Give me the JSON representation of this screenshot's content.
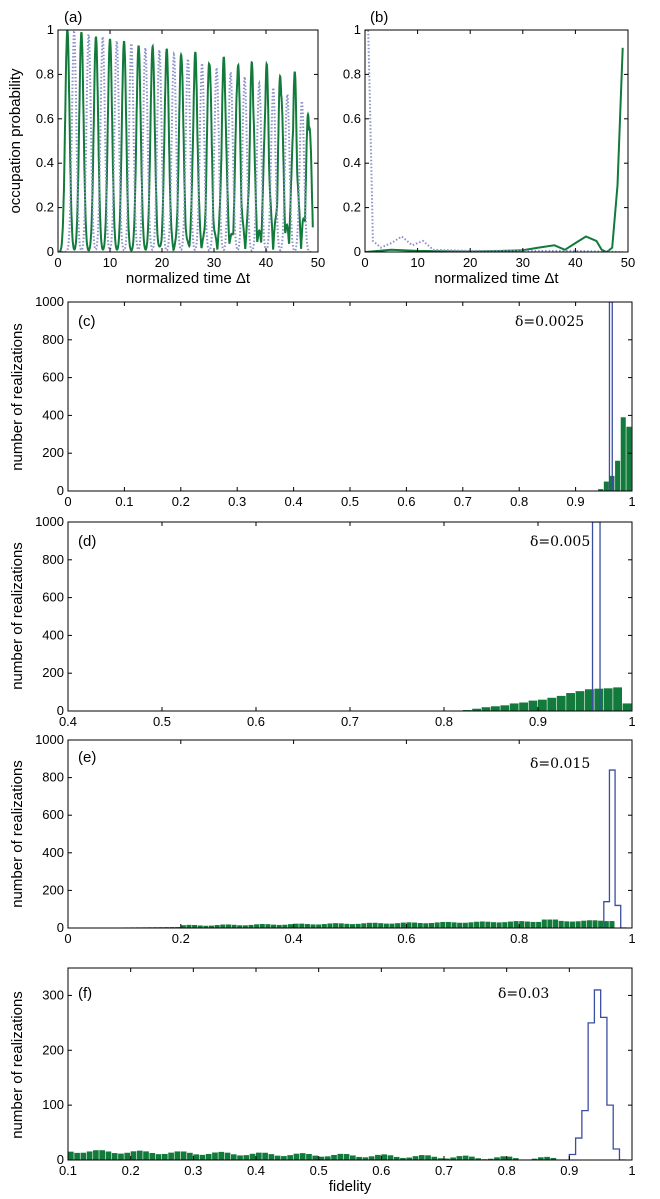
{
  "colors": {
    "green": "#127a3b",
    "blue": "#3b4fa0",
    "dotted": "#8a92c8"
  },
  "chart_data": [
    {
      "id": "a",
      "type": "line",
      "panel_label": "(a)",
      "xlabel": "normalized time Δt",
      "ylabel": "occupation probability",
      "xlim": [
        0,
        50
      ],
      "ylim": [
        0,
        1
      ],
      "xticks": [
        "0",
        "10",
        "20",
        "30",
        "40",
        "50"
      ],
      "yticks": [
        "0",
        "0.2",
        "0.4",
        "0.6",
        "0.8",
        "1"
      ],
      "series": [
        {
          "style": "solid-green",
          "peak_times": [
            1.8,
            4.5,
            7.3,
            10.0,
            12.7,
            15.5,
            18.2,
            20.9,
            23.7,
            26.4,
            29.1,
            31.9,
            34.6,
            37.3,
            40.1,
            42.8,
            45.5,
            48.2
          ],
          "peak_values": [
            1.0,
            0.99,
            0.97,
            0.96,
            0.95,
            0.93,
            0.92,
            0.9,
            0.88,
            0.86,
            0.84,
            0.82,
            0.8,
            0.78,
            0.76,
            0.73,
            0.7,
            0.55
          ]
        },
        {
          "style": "dotted-blue",
          "peak_times": [
            3.1,
            5.9,
            8.6,
            11.3,
            14.1,
            16.8,
            19.5,
            22.3,
            25.0,
            27.7,
            30.5,
            33.2,
            35.9,
            38.7,
            41.4,
            44.1,
            46.9
          ],
          "peak_values": [
            0.99,
            0.98,
            0.97,
            0.95,
            0.94,
            0.92,
            0.91,
            0.89,
            0.87,
            0.85,
            0.83,
            0.81,
            0.79,
            0.76,
            0.74,
            0.71,
            0.68
          ]
        }
      ]
    },
    {
      "id": "b",
      "type": "line",
      "panel_label": "(b)",
      "xlabel": "normalized time Δt",
      "ylabel": "",
      "xlim": [
        0,
        50
      ],
      "ylim": [
        0,
        1
      ],
      "xticks": [
        "0",
        "10",
        "20",
        "30",
        "40",
        "50"
      ],
      "yticks": [
        "0",
        "0.2",
        "0.4",
        "0.6",
        "0.8",
        "1"
      ],
      "series": [
        {
          "style": "solid-green",
          "x": [
            0,
            5,
            10,
            15,
            20,
            25,
            30,
            33,
            36,
            38,
            40,
            42,
            44,
            45,
            46,
            47,
            48,
            49
          ],
          "y": [
            0.0,
            0.01,
            0.005,
            0.003,
            0.002,
            0.004,
            0.008,
            0.02,
            0.03,
            0.01,
            0.04,
            0.07,
            0.05,
            0.01,
            0.0,
            0.02,
            0.3,
            0.92
          ]
        },
        {
          "style": "dotted-blue",
          "x": [
            0,
            0.6,
            1.0,
            1.5,
            3,
            5,
            7,
            9,
            11,
            13,
            20,
            30,
            40,
            49
          ],
          "y": [
            1.0,
            1.0,
            0.6,
            0.05,
            0.02,
            0.04,
            0.07,
            0.03,
            0.05,
            0.01,
            0.005,
            0.005,
            0.005,
            0.0
          ]
        }
      ]
    },
    {
      "id": "c",
      "type": "bar",
      "panel_label": "(c)",
      "annotation": "δ=0.0025",
      "xlabel": "",
      "ylabel": "number of realizations",
      "xlim": [
        0,
        1
      ],
      "ylim": [
        0,
        1000
      ],
      "xticks": [
        "0",
        "0.1",
        "0.2",
        "0.3",
        "0.4",
        "0.5",
        "0.6",
        "0.7",
        "0.8",
        "0.9",
        "1"
      ],
      "yticks": [
        "0",
        "200",
        "400",
        "600",
        "800",
        "1000"
      ],
      "bin_width": 0.01,
      "bins": {
        "start": [
          0.94,
          0.95,
          0.96,
          0.97,
          0.98,
          0.99
        ],
        "values": [
          10,
          50,
          80,
          160,
          390,
          340
        ]
      },
      "outline": {
        "start": [
          0.955,
          0.96,
          0.965,
          0.97
        ],
        "values": [
          0,
          3500,
          0,
          0
        ]
      }
    },
    {
      "id": "d",
      "type": "bar",
      "panel_label": "(d)",
      "annotation": "δ=0.005",
      "xlabel": "",
      "ylabel": "number of realizations",
      "xlim": [
        0.4,
        1
      ],
      "ylim": [
        0,
        1000
      ],
      "xticks": [
        "0.4",
        "0.5",
        "0.6",
        "0.7",
        "0.8",
        "0.9",
        "1"
      ],
      "yticks": [
        "0",
        "200",
        "400",
        "600",
        "800",
        "1000"
      ],
      "bin_width": 0.01,
      "bins": {
        "start": [
          0.82,
          0.83,
          0.84,
          0.85,
          0.86,
          0.87,
          0.88,
          0.89,
          0.9,
          0.91,
          0.92,
          0.93,
          0.94,
          0.95,
          0.96,
          0.97,
          0.98,
          0.99
        ],
        "values": [
          5,
          12,
          20,
          25,
          30,
          40,
          45,
          55,
          60,
          70,
          80,
          95,
          105,
          115,
          118,
          120,
          125,
          40
        ]
      },
      "outline": {
        "start": [
          0.958,
          0.962,
          0.966
        ],
        "values": [
          3500,
          3500,
          0
        ]
      }
    },
    {
      "id": "e",
      "type": "bar",
      "panel_label": "(e)",
      "annotation": "δ=0.015",
      "xlabel": "",
      "ylabel": "number of realizations",
      "xlim": [
        0,
        1
      ],
      "ylim": [
        0,
        1000
      ],
      "xticks": [
        "0",
        "0.2",
        "0.4",
        "0.6",
        "0.8",
        "1"
      ],
      "yticks": [
        "0",
        "200",
        "400",
        "600",
        "800",
        "1000"
      ],
      "bin_width": 0.01,
      "bins_generated": {
        "from": 0.1,
        "to": 0.97,
        "base": 10,
        "slope": 30,
        "end_peak": 45
      },
      "outline": {
        "start": [
          0.94,
          0.95,
          0.96,
          0.97,
          0.98
        ],
        "values": [
          0,
          140,
          840,
          120,
          0
        ]
      }
    },
    {
      "id": "f",
      "type": "bar",
      "panel_label": "(f)",
      "annotation": "δ=0.03",
      "xlabel": "fidelity",
      "ylabel": "number of realizations",
      "xlim": [
        0.1,
        1
      ],
      "ylim": [
        0,
        350
      ],
      "xticks": [
        "0.1",
        "0.2",
        "0.3",
        "0.4",
        "0.5",
        "0.6",
        "0.7",
        "0.8",
        "0.9",
        "1"
      ],
      "yticks": [
        "0",
        "100",
        "200",
        "300"
      ],
      "bin_width": 0.01,
      "bins_generated": {
        "from": 0.1,
        "to": 0.9,
        "base": 16,
        "slope": -14,
        "end_peak": 0
      },
      "outline": {
        "start": [
          0.9,
          0.91,
          0.92,
          0.93,
          0.94,
          0.95,
          0.96,
          0.97,
          0.98
        ],
        "values": [
          10,
          40,
          90,
          250,
          310,
          260,
          100,
          20,
          0
        ]
      }
    }
  ]
}
